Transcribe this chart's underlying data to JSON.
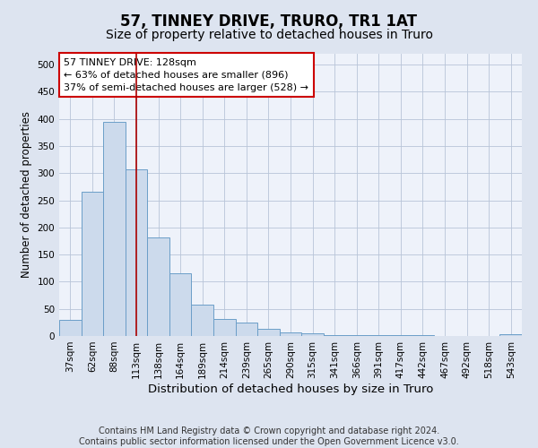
{
  "title": "57, TINNEY DRIVE, TRURO, TR1 1AT",
  "subtitle": "Size of property relative to detached houses in Truro",
  "xlabel": "Distribution of detached houses by size in Truro",
  "ylabel": "Number of detached properties",
  "categories": [
    "37sqm",
    "62sqm",
    "88sqm",
    "113sqm",
    "138sqm",
    "164sqm",
    "189sqm",
    "214sqm",
    "239sqm",
    "265sqm",
    "290sqm",
    "315sqm",
    "341sqm",
    "366sqm",
    "391sqm",
    "417sqm",
    "442sqm",
    "467sqm",
    "492sqm",
    "518sqm",
    "543sqm"
  ],
  "values": [
    30,
    265,
    395,
    307,
    182,
    115,
    58,
    32,
    24,
    14,
    7,
    5,
    2,
    1,
    1,
    1,
    1,
    0,
    0,
    0,
    3
  ],
  "bar_color": "#ccdaec",
  "bar_edge_color": "#6b9ec8",
  "vline_x": 3.0,
  "vline_color": "#aa0000",
  "annotation_text": "57 TINNEY DRIVE: 128sqm\n← 63% of detached houses are smaller (896)\n37% of semi-detached houses are larger (528) →",
  "annotation_box_color": "white",
  "annotation_box_edge_color": "#cc0000",
  "ylim": [
    0,
    520
  ],
  "yticks": [
    0,
    50,
    100,
    150,
    200,
    250,
    300,
    350,
    400,
    450,
    500
  ],
  "bg_color": "#dde4f0",
  "plot_bg_color": "#eef2fa",
  "grid_color": "#b8c4d8",
  "footer_line1": "Contains HM Land Registry data © Crown copyright and database right 2024.",
  "footer_line2": "Contains public sector information licensed under the Open Government Licence v3.0.",
  "title_fontsize": 12,
  "subtitle_fontsize": 10,
  "xlabel_fontsize": 9.5,
  "ylabel_fontsize": 8.5,
  "tick_fontsize": 7.5,
  "footer_fontsize": 7
}
